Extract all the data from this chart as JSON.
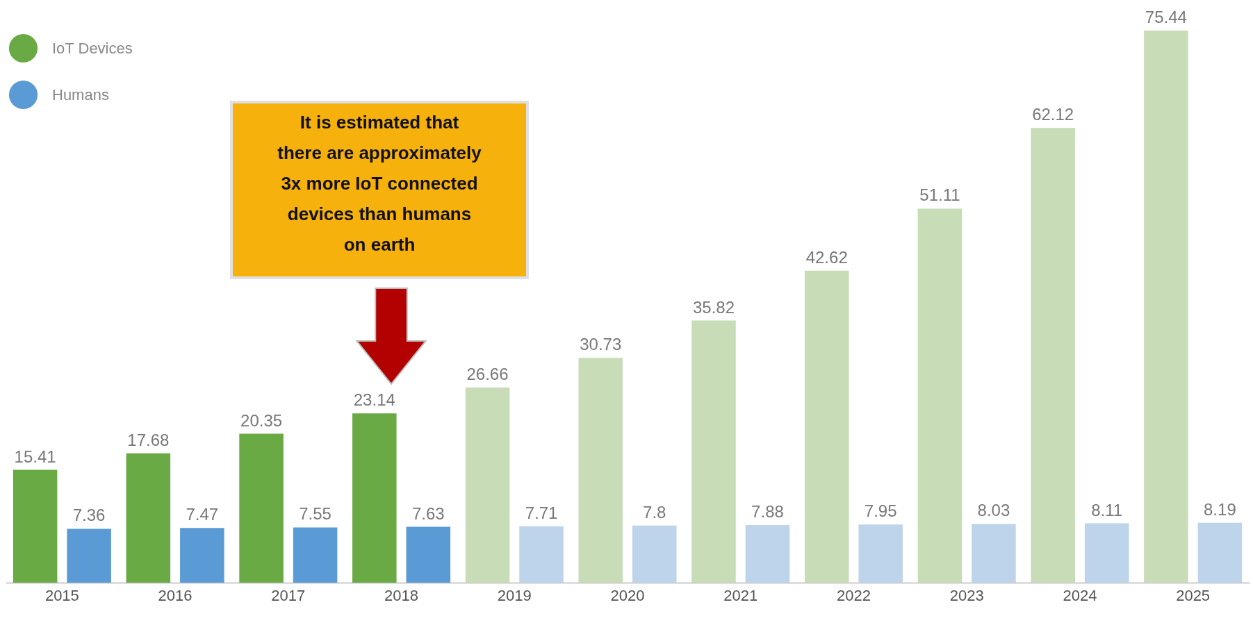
{
  "chart_data": {
    "type": "bar",
    "categories": [
      "2015",
      "2016",
      "2017",
      "2018",
      "2019",
      "2020",
      "2021",
      "2022",
      "2023",
      "2024",
      "2025"
    ],
    "series": [
      {
        "name": "IoT Devices",
        "color": "#6aaa45",
        "values": [
          15.41,
          17.68,
          20.35,
          23.14,
          26.66,
          30.73,
          35.82,
          42.62,
          51.11,
          62.12,
          75.44
        ],
        "colors": [
          "#6aaa45",
          "#6aaa45",
          "#6aaa45",
          "#6aaa45",
          "#c8dcb8",
          "#c8dcb8",
          "#c8dcb8",
          "#c8dcb8",
          "#c8dcb8",
          "#c8dcb8",
          "#c8dcb8"
        ]
      },
      {
        "name": "Humans",
        "color": "#5b9bd5",
        "values": [
          7.36,
          7.47,
          7.55,
          7.63,
          7.71,
          7.8,
          7.88,
          7.95,
          8.03,
          8.11,
          8.19
        ],
        "colors": [
          "#5b9bd5",
          "#5b9bd5",
          "#5b9bd5",
          "#5b9bd5",
          "#bdd4ea",
          "#bdd4ea",
          "#bdd4ea",
          "#bdd4ea",
          "#bdd4ea",
          "#bdd4ea",
          "#bdd4ea"
        ]
      }
    ],
    "data_labels": true,
    "legend": "top left",
    "grid": false,
    "annotations": [
      "It is estimated that\nthere are approximately\n3x more IoT connected\ndevices than humans\non earth"
    ]
  }
}
